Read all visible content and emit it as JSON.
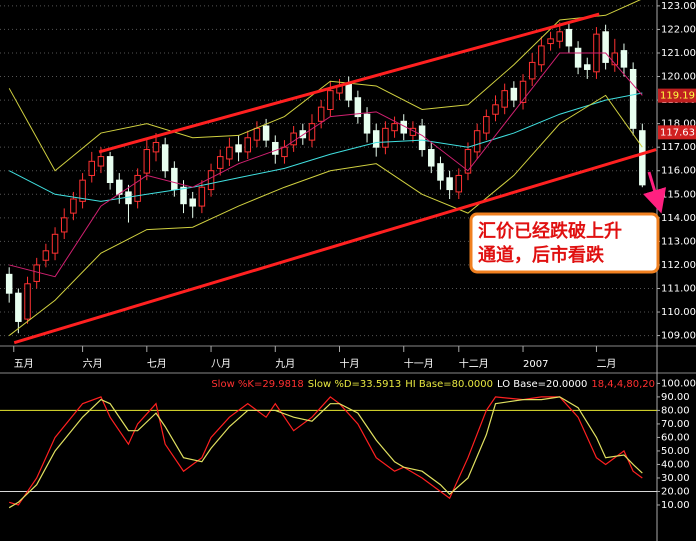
{
  "chart_data": [
    {
      "type": "candlestick",
      "xlim": [
        -1,
        70.6
      ],
      "ylim": [
        108.6,
        123.25
      ],
      "yticks": [
        {
          "value": 109,
          "label": "109.00"
        },
        {
          "value": 110,
          "label": "110.00"
        },
        {
          "value": 111,
          "label": "111.00"
        },
        {
          "value": 112,
          "label": "112.00"
        },
        {
          "value": 113,
          "label": "113.00"
        },
        {
          "value": 114,
          "label": "114.00"
        },
        {
          "value": 115,
          "label": "115.00"
        },
        {
          "value": 116,
          "label": "116.00"
        },
        {
          "value": 117,
          "label": "117.00"
        },
        {
          "value": 118,
          "label": "118.00"
        },
        {
          "value": 119,
          "label": "119.00"
        },
        {
          "value": 120,
          "label": "120.00"
        },
        {
          "value": 121,
          "label": "121.00"
        },
        {
          "value": 122,
          "label": "122.00"
        },
        {
          "value": 123,
          "label": "123.00"
        }
      ],
      "xticks": [
        {
          "value": 0.5,
          "label": "五月"
        },
        {
          "value": 8,
          "label": "六月"
        },
        {
          "value": 15,
          "label": "七月"
        },
        {
          "value": 22,
          "label": "八月"
        },
        {
          "value": 29,
          "label": "九月"
        },
        {
          "value": 36,
          "label": "十月"
        },
        {
          "value": 43,
          "label": "十一月"
        },
        {
          "value": 49,
          "label": "十二月"
        },
        {
          "value": 56,
          "label": "2007"
        },
        {
          "value": 64,
          "label": "二月"
        }
      ],
      "grid": true,
      "up_color": "#ff3232",
      "down_color": "#e8fff0",
      "open": [
        111.6,
        110.8,
        109.7,
        111.3,
        112.2,
        112.5,
        113.4,
        114.2,
        114.7,
        115.8,
        116.2,
        116.6,
        115.6,
        115.1,
        114.7,
        115.9,
        116.8,
        117.1,
        116.1,
        115.3,
        114.8,
        114.5,
        115.2,
        116.1,
        116.5,
        117.1,
        116.8,
        117.3,
        117.9,
        117.2,
        116.6,
        117.1,
        117.7,
        117.3,
        118.1,
        118.6,
        119.3,
        119.7,
        119.1,
        118.4,
        117.7,
        117.0,
        117.7,
        118.1,
        117.5,
        117.9,
        116.9,
        116.3,
        115.7,
        115.1,
        115.9,
        116.8,
        117.6,
        118.4,
        118.7,
        119.5,
        118.9,
        119.9,
        120.5,
        121.4,
        121.5,
        122.0,
        121.2,
        120.5,
        120.2,
        121.9,
        120.5,
        121.1,
        120.3,
        117.7
      ],
      "high": [
        111.9,
        111.0,
        111.5,
        112.3,
        112.9,
        113.6,
        114.4,
        115.1,
        115.9,
        116.8,
        117.0,
        116.8,
        115.9,
        115.4,
        116.1,
        117.3,
        117.6,
        117.4,
        116.4,
        115.6,
        115.1,
        115.6,
        116.3,
        116.9,
        117.4,
        117.5,
        117.7,
        118.1,
        118.2,
        117.5,
        117.3,
        117.9,
        118.0,
        118.4,
        119.0,
        119.8,
        119.9,
        120.0,
        119.4,
        118.7,
        118.0,
        118.1,
        118.3,
        118.4,
        118.1,
        118.2,
        117.2,
        116.6,
        116.0,
        116.1,
        117.2,
        118.0,
        118.6,
        119.2,
        119.7,
        119.8,
        120.1,
        121.0,
        121.7,
        121.9,
        122.3,
        122.3,
        121.5,
        120.8,
        122.1,
        122.2,
        121.6,
        121.4,
        120.6,
        118.0
      ],
      "low": [
        110.4,
        109.1,
        109.5,
        111.0,
        111.9,
        112.2,
        113.1,
        113.9,
        114.4,
        115.5,
        115.9,
        115.2,
        114.6,
        113.8,
        114.4,
        115.6,
        116.4,
        115.7,
        114.9,
        114.2,
        114.0,
        114.2,
        114.9,
        115.8,
        116.2,
        116.4,
        116.5,
        117.0,
        117.0,
        116.3,
        116.3,
        116.8,
        117.1,
        117.0,
        117.8,
        118.3,
        119.0,
        118.7,
        118.0,
        117.2,
        116.6,
        116.7,
        117.4,
        117.3,
        117.2,
        116.6,
        115.9,
        115.2,
        114.8,
        114.8,
        115.6,
        116.5,
        117.3,
        118.1,
        118.4,
        118.7,
        118.6,
        119.6,
        120.2,
        121.1,
        121.2,
        121.0,
        120.1,
        119.9,
        119.9,
        120.3,
        120.2,
        120.0,
        117.5,
        115.3
      ],
      "close": [
        110.8,
        109.6,
        111.2,
        112.0,
        112.6,
        113.3,
        114.0,
        114.8,
        115.6,
        116.4,
        116.6,
        115.5,
        115.0,
        114.6,
        115.8,
        116.9,
        117.2,
        116.0,
        115.2,
        114.6,
        114.5,
        115.3,
        116.0,
        116.6,
        117.0,
        116.8,
        117.4,
        117.8,
        117.3,
        116.7,
        117.0,
        117.6,
        117.4,
        118.0,
        118.7,
        119.4,
        119.6,
        119.0,
        118.3,
        117.6,
        117.0,
        117.8,
        118.0,
        117.6,
        117.8,
        116.9,
        116.2,
        115.6,
        115.2,
        115.8,
        116.9,
        117.7,
        118.3,
        118.8,
        119.4,
        119.0,
        119.8,
        120.6,
        121.3,
        121.6,
        121.9,
        121.3,
        120.4,
        120.3,
        121.8,
        120.6,
        121.0,
        120.4,
        117.8,
        115.4
      ],
      "overlays": [
        {
          "color": "#40e0e0",
          "x": [
            0,
            5,
            10,
            15,
            20,
            25,
            30,
            35,
            40,
            45,
            50,
            55,
            60,
            65,
            69
          ],
          "values": [
            116.0,
            115.0,
            114.7,
            115.0,
            115.3,
            115.7,
            116.1,
            116.7,
            117.2,
            117.3,
            117.0,
            117.6,
            118.4,
            119.0,
            119.3
          ]
        },
        {
          "color": "#d0d040",
          "x": [
            0,
            5,
            10,
            15,
            20,
            25,
            30,
            35,
            40,
            45,
            50,
            55,
            60,
            65,
            69
          ],
          "values": [
            119.5,
            116.0,
            117.6,
            118.0,
            117.4,
            117.5,
            118.3,
            119.8,
            119.6,
            118.6,
            118.8,
            120.5,
            122.4,
            122.6,
            123.3
          ]
        },
        {
          "color": "#d0d040",
          "x": [
            0,
            5,
            10,
            15,
            20,
            25,
            30,
            35,
            40,
            45,
            50,
            55,
            60,
            65,
            69
          ],
          "values": [
            109.0,
            110.5,
            112.5,
            113.5,
            113.6,
            114.5,
            115.3,
            116.0,
            116.3,
            115.0,
            114.2,
            115.8,
            118.0,
            119.2,
            117.0
          ]
        },
        {
          "color": "#d02070",
          "x": [
            0,
            5,
            10,
            15,
            20,
            25,
            30,
            35,
            40,
            45,
            50,
            55,
            60,
            65,
            69
          ],
          "values": [
            112.0,
            111.5,
            114.5,
            115.8,
            115.3,
            116.3,
            117.0,
            118.3,
            118.5,
            117.5,
            116.0,
            118.5,
            121.0,
            121.0,
            119.2
          ]
        }
      ],
      "trend_lines": [
        {
          "color": "#ff2020",
          "x": [
            9.8,
            64.3
          ],
          "values": [
            116.8,
            122.65
          ]
        },
        {
          "color": "#ff2020",
          "x": [
            0.55,
            70.5
          ],
          "values": [
            108.7,
            116.9
          ]
        }
      ],
      "price_markers": [
        {
          "value": 119.19,
          "bg": "#c02020",
          "fg": "#ffff40"
        },
        {
          "value": 117.63,
          "bg": "#d02020",
          "fg": "#ffffff"
        }
      ],
      "annotation": [
        "汇价已经跌破上升",
        "通道，后市看跌"
      ]
    },
    {
      "type": "line",
      "xlim": [
        -1,
        70.6
      ],
      "ylim": [
        -10,
        104
      ],
      "yticks": [
        {
          "value": 10,
          "label": "10.00"
        },
        {
          "value": 20,
          "label": "20.00"
        },
        {
          "value": 30,
          "label": "30.00"
        },
        {
          "value": 40,
          "label": "40.00"
        },
        {
          "value": 50,
          "label": "50.00"
        },
        {
          "value": 60,
          "label": "60.00"
        },
        {
          "value": 70,
          "label": "70.00"
        },
        {
          "value": 80,
          "label": "80.00"
        },
        {
          "value": 90,
          "label": "90.00"
        },
        {
          "value": 100,
          "label": "100.00"
        }
      ],
      "x": [
        0,
        1,
        3,
        5,
        8,
        10,
        11,
        13,
        14,
        16,
        17,
        19,
        21,
        22,
        24,
        26,
        28,
        29,
        31,
        33,
        35,
        36,
        38,
        40,
        42,
        43,
        45,
        47,
        48,
        50,
        52,
        53,
        56,
        58,
        60,
        62,
        64,
        65,
        67,
        68,
        69
      ],
      "series": [
        {
          "color": "#ff2020",
          "values": [
            12,
            10,
            30,
            60,
            85,
            90,
            75,
            55,
            70,
            85,
            55,
            35,
            45,
            60,
            75,
            85,
            75,
            85,
            65,
            75,
            90,
            85,
            70,
            45,
            35,
            38,
            30,
            20,
            15,
            45,
            80,
            90,
            88,
            90,
            90,
            75,
            45,
            40,
            50,
            35,
            30
          ]
        },
        {
          "color": "#e0e060",
          "values": [
            8,
            12,
            25,
            50,
            75,
            88,
            85,
            65,
            65,
            78,
            68,
            45,
            42,
            52,
            68,
            80,
            80,
            80,
            75,
            72,
            85,
            85,
            78,
            58,
            42,
            38,
            35,
            25,
            18,
            30,
            62,
            85,
            88,
            88,
            90,
            82,
            60,
            45,
            47,
            40,
            33.6
          ]
        }
      ],
      "hlines": [
        {
          "value": 80,
          "color": "#e8e830"
        },
        {
          "value": 20,
          "color": "#d8d8d8"
        }
      ],
      "header": [
        {
          "text": "Slow %K=29.9818",
          "color": "#ff3030"
        },
        {
          "text": "Slow %D=33.5913",
          "color": "#e8e840"
        },
        {
          "text": "HI Base=80.0000",
          "color": "#e8e840"
        },
        {
          "text": "LO Base=20.0000",
          "color": "#ffffff"
        },
        {
          "text": "18,4,4,80,20",
          "color": "#ff3030"
        }
      ]
    }
  ]
}
